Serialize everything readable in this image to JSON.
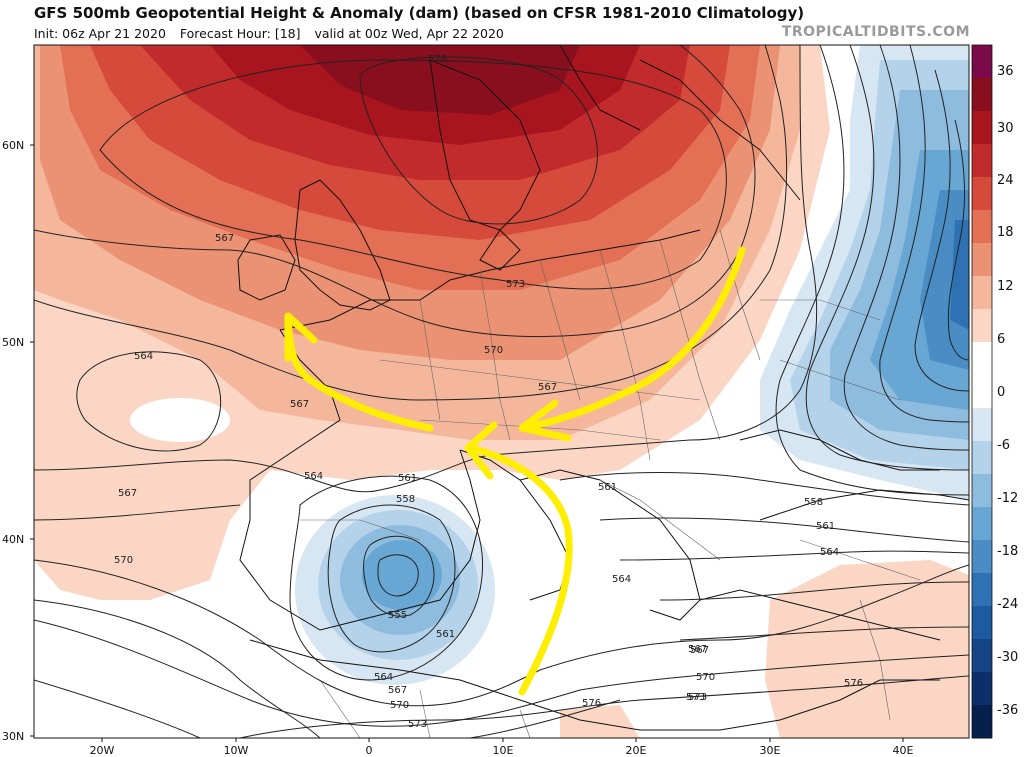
{
  "header": {
    "title": "GFS 500mb Geopotential Height & Anomaly (dam) (based on CFSR 1981-2010 Climatology)",
    "init": "Init: 06z Apr 21 2020",
    "forecast_hour": "Forecast Hour: [18]",
    "valid": "valid at 00z Wed, Apr 22 2020",
    "credit": "TROPICALTIDBITS.COM"
  },
  "axes": {
    "lat_labels": [
      "60N",
      "50N",
      "40N",
      "30N"
    ],
    "lon_labels": [
      "20W",
      "10W",
      "0",
      "10E",
      "20E",
      "30E",
      "40E"
    ]
  },
  "colorbar": {
    "labels": [
      "36",
      "30",
      "24",
      "18",
      "12",
      "6",
      "0",
      "-6",
      "-12",
      "-18",
      "-24",
      "-30",
      "-36"
    ],
    "colors": [
      "#7b0a4a",
      "#8a0f1e",
      "#a8151f",
      "#c22b2b",
      "#d64a3b",
      "#e36f55",
      "#ec9274",
      "#f4b79c",
      "#fbd6c5",
      "#ffffff",
      "#ffffff",
      "#d6e6f2",
      "#b4d2ea",
      "#8ebcdf",
      "#68a6d3",
      "#4a8dc5",
      "#2f72b4",
      "#1d5aa0",
      "#144486",
      "#0c2f6a",
      "#06204d"
    ]
  },
  "contour_labels": [
    {
      "text": "576"
    },
    {
      "text": "573"
    },
    {
      "text": "570"
    },
    {
      "text": "567"
    },
    {
      "text": "567"
    },
    {
      "text": "567"
    },
    {
      "text": "567"
    },
    {
      "text": "564"
    },
    {
      "text": "564"
    },
    {
      "text": "561"
    },
    {
      "text": "558"
    },
    {
      "text": "555"
    },
    {
      "text": "561"
    },
    {
      "text": "564"
    },
    {
      "text": "567"
    },
    {
      "text": "570"
    },
    {
      "text": "573"
    },
    {
      "text": "570"
    },
    {
      "text": "567"
    },
    {
      "text": "573"
    },
    {
      "text": "576"
    },
    {
      "text": "561"
    },
    {
      "text": "564"
    },
    {
      "text": "558"
    },
    {
      "text": "561"
    },
    {
      "text": "564"
    },
    {
      "text": "567"
    },
    {
      "text": "570"
    },
    {
      "text": "573"
    },
    {
      "text": "576"
    }
  ],
  "colors": {
    "arrow": "#ffee00",
    "ridge_red": "#c22b2b",
    "trough_blue": "#4a8dc5"
  }
}
